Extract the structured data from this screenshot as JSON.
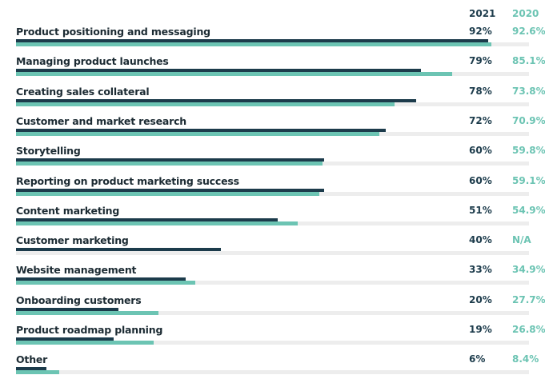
{
  "chart_data": {
    "type": "bar",
    "orientation": "horizontal",
    "grid": false,
    "xlim": [
      0,
      100
    ],
    "series": [
      {
        "name": "2021",
        "color": "#1c3b4b"
      },
      {
        "name": "2020",
        "color": "#6cc4b3"
      }
    ],
    "rows": [
      {
        "label": "Product positioning and messaging",
        "v2021": 92,
        "v2020": 92.6,
        "t2021": "92%",
        "t2020": "92.6%"
      },
      {
        "label": "Managing product launches",
        "v2021": 79,
        "v2020": 85.1,
        "t2021": "79%",
        "t2020": "85.1%"
      },
      {
        "label": "Creating sales collateral",
        "v2021": 78,
        "v2020": 73.8,
        "t2021": "78%",
        "t2020": "73.8%"
      },
      {
        "label": "Customer and market research",
        "v2021": 72,
        "v2020": 70.9,
        "t2021": "72%",
        "t2020": "70.9%"
      },
      {
        "label": "Storytelling",
        "v2021": 60,
        "v2020": 59.8,
        "t2021": "60%",
        "t2020": "59.8%"
      },
      {
        "label": "Reporting on product marketing success",
        "v2021": 60,
        "v2020": 59.1,
        "t2021": "60%",
        "t2020": "59.1%"
      },
      {
        "label": "Content marketing",
        "v2021": 51,
        "v2020": 54.9,
        "t2021": "51%",
        "t2020": "54.9%"
      },
      {
        "label": "Customer marketing",
        "v2021": 40,
        "v2020": null,
        "t2021": "40%",
        "t2020": "N/A"
      },
      {
        "label": "Website management",
        "v2021": 33,
        "v2020": 34.9,
        "t2021": "33%",
        "t2020": "34.9%"
      },
      {
        "label": "Onboarding customers",
        "v2021": 20,
        "v2020": 27.7,
        "t2021": "20%",
        "t2020": "27.7%"
      },
      {
        "label": "Product roadmap planning",
        "v2021": 19,
        "v2020": 26.8,
        "t2021": "19%",
        "t2020": "26.8%"
      },
      {
        "label": "Other",
        "v2021": 6,
        "v2020": 8.4,
        "t2021": "6%",
        "t2020": "8.4%"
      }
    ]
  }
}
